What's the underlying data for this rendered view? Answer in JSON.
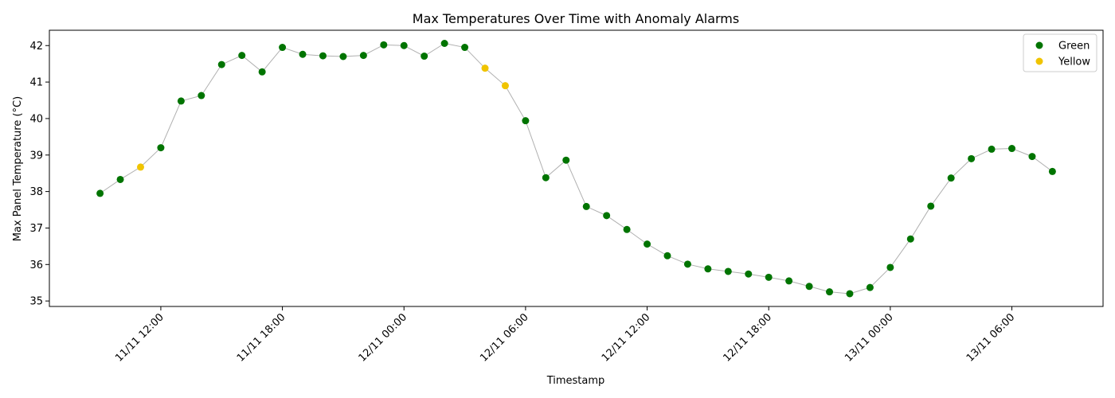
{
  "chart_data": {
    "type": "scatter",
    "title": "Max Temperatures Over Time with Anomaly Alarms",
    "xlabel": "Timestamp",
    "ylabel": "Max Panel Temperature (°C)",
    "x_tick_labels": [
      "11/11 12:00",
      "11/11 18:00",
      "12/11 00:00",
      "12/11 06:00",
      "12/11 12:00",
      "12/11 18:00",
      "13/11 00:00",
      "13/11 06:00"
    ],
    "x_ticks": [
      "2024-11-11 12:00",
      "2024-11-11 18:00",
      "2024-11-12 00:00",
      "2024-11-12 06:00",
      "2024-11-12 12:00",
      "2024-11-12 18:00",
      "2024-11-13 00:00",
      "2024-11-13 06:00"
    ],
    "y_ticks": [
      35,
      36,
      37,
      38,
      39,
      40,
      41,
      42
    ],
    "xlim": [
      "2024-11-11 06:30",
      "2024-11-13 10:30"
    ],
    "ylim": [
      34.85,
      42.42
    ],
    "grid": false,
    "legend_position": "top-right",
    "legend": [
      {
        "label": "Green",
        "color": "#007400"
      },
      {
        "label": "Yellow",
        "color": "#f0c400"
      }
    ],
    "line_color": "#b0b0b0",
    "points": [
      {
        "x": "2024-11-11 09:00",
        "y": 37.95,
        "status": "Green"
      },
      {
        "x": "2024-11-11 10:00",
        "y": 38.33,
        "status": "Green"
      },
      {
        "x": "2024-11-11 11:00",
        "y": 38.67,
        "status": "Yellow"
      },
      {
        "x": "2024-11-11 12:00",
        "y": 39.2,
        "status": "Green"
      },
      {
        "x": "2024-11-11 13:00",
        "y": 40.48,
        "status": "Green"
      },
      {
        "x": "2024-11-11 14:00",
        "y": 40.63,
        "status": "Green"
      },
      {
        "x": "2024-11-11 15:00",
        "y": 41.48,
        "status": "Green"
      },
      {
        "x": "2024-11-11 16:00",
        "y": 41.73,
        "status": "Green"
      },
      {
        "x": "2024-11-11 17:00",
        "y": 41.28,
        "status": "Green"
      },
      {
        "x": "2024-11-11 18:00",
        "y": 41.95,
        "status": "Green"
      },
      {
        "x": "2024-11-11 19:00",
        "y": 41.76,
        "status": "Green"
      },
      {
        "x": "2024-11-11 20:00",
        "y": 41.72,
        "status": "Green"
      },
      {
        "x": "2024-11-11 21:00",
        "y": 41.7,
        "status": "Green"
      },
      {
        "x": "2024-11-11 22:00",
        "y": 41.73,
        "status": "Green"
      },
      {
        "x": "2024-11-11 23:00",
        "y": 42.02,
        "status": "Green"
      },
      {
        "x": "2024-11-12 00:00",
        "y": 42.0,
        "status": "Green"
      },
      {
        "x": "2024-11-12 01:00",
        "y": 41.71,
        "status": "Green"
      },
      {
        "x": "2024-11-12 02:00",
        "y": 42.06,
        "status": "Green"
      },
      {
        "x": "2024-11-12 03:00",
        "y": 41.95,
        "status": "Green"
      },
      {
        "x": "2024-11-12 04:00",
        "y": 41.38,
        "status": "Yellow"
      },
      {
        "x": "2024-11-12 05:00",
        "y": 40.9,
        "status": "Yellow"
      },
      {
        "x": "2024-11-12 06:00",
        "y": 39.94,
        "status": "Green"
      },
      {
        "x": "2024-11-12 07:00",
        "y": 38.38,
        "status": "Green"
      },
      {
        "x": "2024-11-12 08:00",
        "y": 38.86,
        "status": "Green"
      },
      {
        "x": "2024-11-12 09:00",
        "y": 37.59,
        "status": "Green"
      },
      {
        "x": "2024-11-12 10:00",
        "y": 37.34,
        "status": "Green"
      },
      {
        "x": "2024-11-12 11:00",
        "y": 36.96,
        "status": "Green"
      },
      {
        "x": "2024-11-12 12:00",
        "y": 36.56,
        "status": "Green"
      },
      {
        "x": "2024-11-12 13:00",
        "y": 36.24,
        "status": "Green"
      },
      {
        "x": "2024-11-12 14:00",
        "y": 36.01,
        "status": "Green"
      },
      {
        "x": "2024-11-12 15:00",
        "y": 35.88,
        "status": "Green"
      },
      {
        "x": "2024-11-12 16:00",
        "y": 35.81,
        "status": "Green"
      },
      {
        "x": "2024-11-12 17:00",
        "y": 35.74,
        "status": "Green"
      },
      {
        "x": "2024-11-12 18:00",
        "y": 35.65,
        "status": "Green"
      },
      {
        "x": "2024-11-12 19:00",
        "y": 35.55,
        "status": "Green"
      },
      {
        "x": "2024-11-12 20:00",
        "y": 35.4,
        "status": "Green"
      },
      {
        "x": "2024-11-12 21:00",
        "y": 35.25,
        "status": "Green"
      },
      {
        "x": "2024-11-12 22:00",
        "y": 35.2,
        "status": "Green"
      },
      {
        "x": "2024-11-12 23:00",
        "y": 35.37,
        "status": "Green"
      },
      {
        "x": "2024-11-13 00:00",
        "y": 35.92,
        "status": "Green"
      },
      {
        "x": "2024-11-13 01:00",
        "y": 36.7,
        "status": "Green"
      },
      {
        "x": "2024-11-13 02:00",
        "y": 37.6,
        "status": "Green"
      },
      {
        "x": "2024-11-13 03:00",
        "y": 38.37,
        "status": "Green"
      },
      {
        "x": "2024-11-13 04:00",
        "y": 38.9,
        "status": "Green"
      },
      {
        "x": "2024-11-13 05:00",
        "y": 39.16,
        "status": "Green"
      },
      {
        "x": "2024-11-13 06:00",
        "y": 39.18,
        "status": "Green"
      },
      {
        "x": "2024-11-13 07:00",
        "y": 38.96,
        "status": "Green"
      },
      {
        "x": "2024-11-13 08:00",
        "y": 38.55,
        "status": "Green"
      }
    ]
  }
}
